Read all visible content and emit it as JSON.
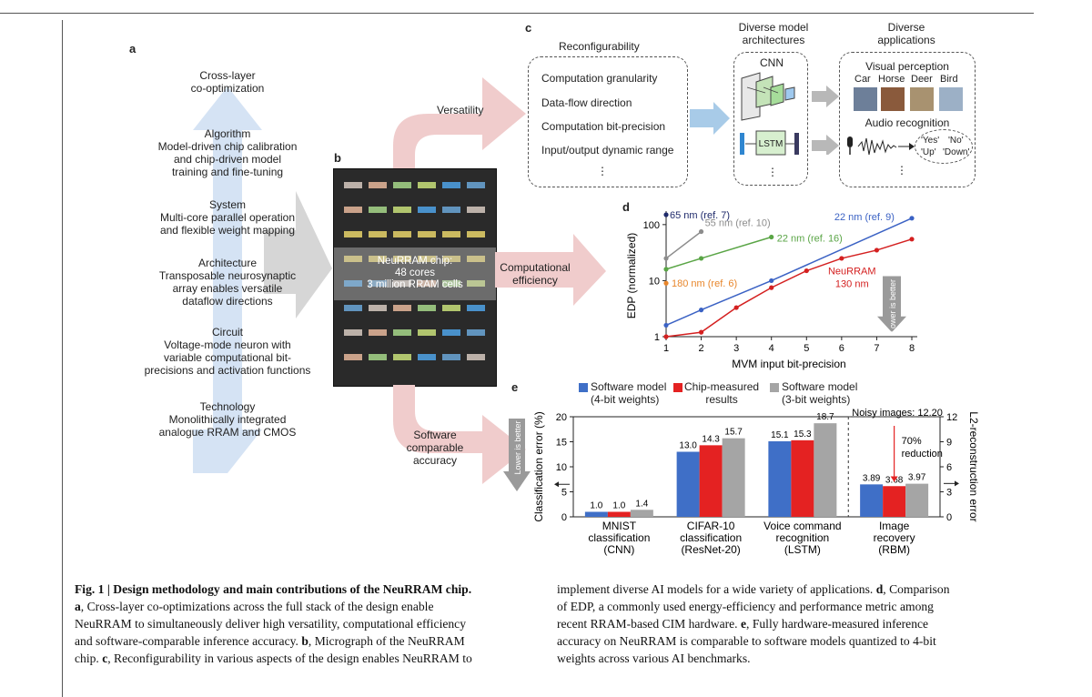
{
  "panel_labels": {
    "a": "a",
    "b": "b",
    "c": "c",
    "d": "d",
    "e": "e"
  },
  "panel_a": {
    "layers": [
      {
        "title": "Cross-layer",
        "lines": [
          "co-optimization"
        ]
      },
      {
        "title": "Algorithm",
        "lines": [
          "Model-driven chip calibration",
          "and chip-driven model",
          "training and fine-tuning"
        ]
      },
      {
        "title": "System",
        "lines": [
          "Multi-core parallel operation",
          "and flexible weight mapping"
        ]
      },
      {
        "title": "Architecture",
        "lines": [
          "Transposable neurosynaptic",
          "array enables versatile",
          "dataflow directions"
        ]
      },
      {
        "title": "Circuit",
        "lines": [
          "Voltage-mode neuron with",
          "variable computational bit-",
          "precisions and activation functions"
        ]
      },
      {
        "title": "Technology",
        "lines": [
          "Monolithically integrated",
          "analogue RRAM and CMOS"
        ]
      }
    ]
  },
  "panel_b": {
    "chip_label_lines": [
      "NeuRRAM chip:",
      "48 cores",
      "3 million RRAM cells"
    ]
  },
  "arrows": {
    "versatility": "Versatility",
    "efficiency_lines": [
      "Computational",
      "efficiency"
    ],
    "accuracy_lines": [
      "Software",
      "comparable",
      "accuracy"
    ]
  },
  "panel_c": {
    "reconfig_title": "Reconfigurability",
    "reconfig_items": [
      "Computation granularity",
      "Data-flow direction",
      "Computation bit-precision",
      "Input/output dynamic range"
    ],
    "ellipsis": "⋮",
    "models_title_lines": [
      "Diverse model",
      "architectures"
    ],
    "cnn": "CNN",
    "lstm": "LSTM",
    "apps_title_lines": [
      "Diverse",
      "applications"
    ],
    "visual": "Visual perception",
    "classes": [
      "Car",
      "Horse",
      "Deer",
      "Bird"
    ],
    "audio": "Audio recognition",
    "words": [
      "'Yes'",
      "'No'",
      "'Up'",
      "'Down'"
    ]
  },
  "panel_d": {
    "chart_data": {
      "type": "line",
      "xlabel": "MVM input bit-precision",
      "ylabel": "EDP (normalized)",
      "x_ticks": [
        1,
        2,
        3,
        4,
        5,
        6,
        7,
        8
      ],
      "y_ticks": [
        "1",
        "10",
        "100"
      ],
      "ylim": [
        1,
        150
      ],
      "y_scale": "log",
      "annotation": "Lower is better",
      "series": [
        {
          "name": "65 nm (ref. 7)",
          "color": "#1f2a6b",
          "x": [
            1
          ],
          "y": [
            150
          ]
        },
        {
          "name": "55 nm (ref. 10)",
          "color": "#8c8c8c",
          "x": [
            1,
            2
          ],
          "y": [
            25,
            75
          ]
        },
        {
          "name": "22 nm (ref. 16)",
          "color": "#5aa546",
          "x": [
            1,
            2,
            4
          ],
          "y": [
            16,
            25,
            60
          ]
        },
        {
          "name": "22 nm (ref. 9)",
          "color": "#3b62c4",
          "x": [
            1,
            2,
            4,
            8
          ],
          "y": [
            1.6,
            3,
            10,
            130
          ]
        },
        {
          "name": "180 nm (ref. 6)",
          "color": "#e8862b",
          "x": [
            1
          ],
          "y": [
            9
          ]
        },
        {
          "name": "NeuRRAM 130 nm",
          "color": "#d42020",
          "x": [
            1,
            2,
            3,
            4,
            5,
            6,
            7,
            8
          ],
          "y": [
            1,
            1.2,
            3.3,
            7.5,
            15,
            25,
            35,
            55
          ]
        }
      ],
      "labels": {
        "s65": "65 nm (ref. 7)",
        "s55": "55 nm (ref. 10)",
        "s22g": "22 nm (ref. 16)",
        "s22b": "22 nm (ref. 9)",
        "s180": "180 nm (ref. 6)",
        "neu1": "NeuRRAM",
        "neu2": "130 nm"
      }
    }
  },
  "panel_e": {
    "chart_data": {
      "type": "bar",
      "legend": [
        "Software model",
        "(4-bit weights)",
        "Chip-measured",
        "results",
        "Software model",
        "(3-bit weights)"
      ],
      "series_names": [
        "Software model (4-bit weights)",
        "Chip-measured results",
        "Software model (3-bit weights)"
      ],
      "colors": [
        "#3f6fc7",
        "#e42222",
        "#a5a5a5"
      ],
      "ylabel_left": "Classification error (%)",
      "ylabel_right": "L2-reconstruction error",
      "ylim_left": [
        0,
        20
      ],
      "ylim_right": [
        0,
        12
      ],
      "left_ticks": [
        "0",
        "5",
        "10",
        "15",
        "20"
      ],
      "right_ticks": [
        "0",
        "3",
        "6",
        "9",
        "12"
      ],
      "annotation": "Lower is better",
      "noisy_label": "Noisy images: 12.20",
      "reduction_lines": [
        "70%",
        "reduction"
      ],
      "groups": [
        {
          "label_lines": [
            "MNIST",
            "classification",
            "(CNN)"
          ],
          "values": [
            1.0,
            1.0,
            1.4
          ],
          "labels": [
            "1.0",
            "1.0",
            "1.4"
          ],
          "axis": "left"
        },
        {
          "label_lines": [
            "CIFAR-10",
            "classification",
            "(ResNet-20)"
          ],
          "values": [
            13.0,
            14.3,
            15.7
          ],
          "labels": [
            "13.0",
            "14.3",
            "15.7"
          ],
          "axis": "left"
        },
        {
          "label_lines": [
            "Voice command",
            "recognition",
            "(LSTM)"
          ],
          "values": [
            15.1,
            15.3,
            18.7
          ],
          "labels": [
            "15.1",
            "15.3",
            "18.7"
          ],
          "axis": "left"
        },
        {
          "label_lines": [
            "Image",
            "recovery",
            "(RBM)"
          ],
          "values": [
            3.89,
            3.68,
            3.97
          ],
          "labels": [
            "3.89",
            "3.68",
            "3.97"
          ],
          "axis": "right"
        }
      ]
    }
  },
  "caption": {
    "fig_title": "Fig. 1 | Design methodology and main contributions of the NeuRRAM chip.",
    "left_lines": [
      [
        {
          "b": "a"
        },
        {
          "t": ", Cross-layer co-optimizations across the full stack of the design enable"
        }
      ],
      [
        {
          "t": "NeuRRAM to simultaneously deliver high versatility, computational efficiency"
        }
      ],
      [
        {
          "t": "and software-comparable inference accuracy. "
        },
        {
          "b": "b"
        },
        {
          "t": ", Micrograph of the NeuRRAM"
        }
      ],
      [
        {
          "t": "chip. "
        },
        {
          "b": "c"
        },
        {
          "t": ", Reconfigurability in various aspects of the design enables NeuRRAM to"
        }
      ]
    ],
    "right_lines": [
      [
        {
          "t": "implement diverse AI models for a wide variety of applications. "
        },
        {
          "b": "d"
        },
        {
          "t": ", Comparison"
        }
      ],
      [
        {
          "t": "of EDP, a commonly used energy-efficiency and performance metric among"
        }
      ],
      [
        {
          "t": "recent RRAM-based CIM hardware. "
        },
        {
          "b": "e"
        },
        {
          "t": ", Fully hardware-measured inference"
        }
      ],
      [
        {
          "t": "accuracy on NeuRRAM is comparable to software models quantized to 4-bit"
        }
      ],
      [
        {
          "t": "weights across various AI benchmarks."
        }
      ]
    ]
  }
}
